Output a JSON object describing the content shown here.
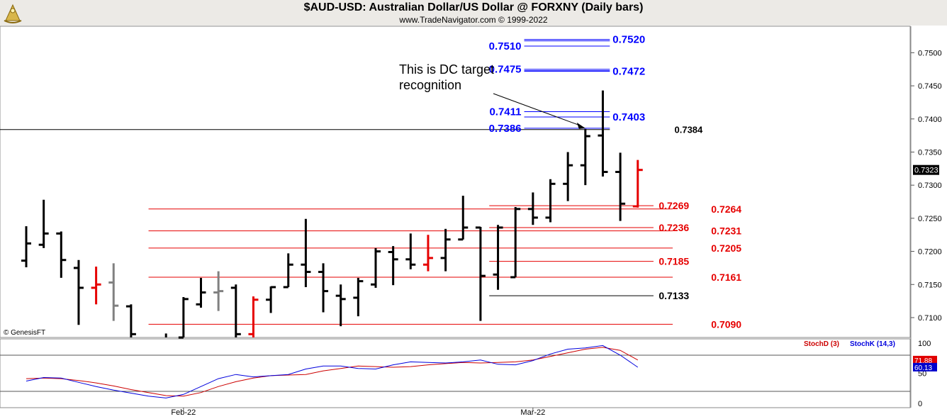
{
  "header": {
    "title": "$AUD-USD:  Australian Dollar/US Dollar @ FORXNY  (Daily bars)",
    "subtitle": "www.TradeNavigator.com © 1999-2022",
    "logo_icon": "gold-sextant-logo-icon"
  },
  "watermark": "© GenesisFT",
  "colors": {
    "black": "#000000",
    "red": "#e60000",
    "gray": "#808080",
    "blue": "#0000ff",
    "stoch_d": "#cc0000",
    "stoch_k": "#0000dd"
  },
  "chart_data": {
    "type": "ohlc-bar",
    "x_ticks": [
      {
        "label": "Feb-22",
        "index": 9
      },
      {
        "label": "Mar-22",
        "index": 29
      }
    ],
    "y_axis": {
      "ylim": [
        0.707,
        0.754
      ],
      "ticks": [
        "0.7100",
        "0.7150",
        "0.7200",
        "0.7250",
        "0.7300",
        "0.7350",
        "0.7400",
        "0.7450",
        "0.7500"
      ]
    },
    "last_price": "0.7323",
    "bars": [
      {
        "o": 0.7186,
        "h": 0.7238,
        "l": 0.7176,
        "c": 0.7212,
        "color": "black"
      },
      {
        "o": 0.721,
        "h": 0.7278,
        "l": 0.7205,
        "c": 0.7227,
        "color": "black"
      },
      {
        "o": 0.7227,
        "h": 0.723,
        "l": 0.716,
        "c": 0.7187,
        "color": "black"
      },
      {
        "o": 0.7175,
        "h": 0.7187,
        "l": 0.7089,
        "c": 0.7145,
        "color": "black"
      },
      {
        "o": 0.7145,
        "h": 0.7177,
        "l": 0.712,
        "c": 0.715,
        "color": "red"
      },
      {
        "o": 0.7153,
        "h": 0.7182,
        "l": 0.7095,
        "c": 0.7118,
        "color": "gray"
      },
      {
        "o": 0.7117,
        "h": 0.712,
        "l": 0.706,
        "c": 0.7075,
        "color": "black"
      },
      {
        "o": 0.7055,
        "h": 0.707,
        "l": 0.704,
        "c": 0.706,
        "color": "black"
      },
      {
        "o": 0.7068,
        "h": 0.7076,
        "l": 0.705,
        "c": 0.706,
        "color": "black"
      },
      {
        "o": 0.707,
        "h": 0.7131,
        "l": 0.7065,
        "c": 0.7128,
        "color": "black"
      },
      {
        "o": 0.712,
        "h": 0.716,
        "l": 0.7115,
        "c": 0.7138,
        "color": "black"
      },
      {
        "o": 0.7138,
        "h": 0.717,
        "l": 0.711,
        "c": 0.714,
        "color": "gray"
      },
      {
        "o": 0.7145,
        "h": 0.715,
        "l": 0.706,
        "c": 0.7075,
        "color": "black"
      },
      {
        "o": 0.7075,
        "h": 0.7132,
        "l": 0.7062,
        "c": 0.7127,
        "color": "red"
      },
      {
        "o": 0.7127,
        "h": 0.7147,
        "l": 0.7107,
        "c": 0.7146,
        "color": "black"
      },
      {
        "o": 0.7146,
        "h": 0.7197,
        "l": 0.7146,
        "c": 0.718,
        "color": "black"
      },
      {
        "o": 0.718,
        "h": 0.7249,
        "l": 0.7146,
        "c": 0.7169,
        "color": "black"
      },
      {
        "o": 0.7169,
        "h": 0.7182,
        "l": 0.7108,
        "c": 0.714,
        "color": "black"
      },
      {
        "o": 0.7133,
        "h": 0.715,
        "l": 0.7087,
        "c": 0.7128,
        "color": "black"
      },
      {
        "o": 0.713,
        "h": 0.716,
        "l": 0.7102,
        "c": 0.7155,
        "color": "black"
      },
      {
        "o": 0.715,
        "h": 0.7205,
        "l": 0.7145,
        "c": 0.72,
        "color": "black"
      },
      {
        "o": 0.7199,
        "h": 0.7208,
        "l": 0.7149,
        "c": 0.7188,
        "color": "black"
      },
      {
        "o": 0.7188,
        "h": 0.7227,
        "l": 0.7173,
        "c": 0.718,
        "color": "black"
      },
      {
        "o": 0.718,
        "h": 0.7225,
        "l": 0.717,
        "c": 0.719,
        "color": "red"
      },
      {
        "o": 0.719,
        "h": 0.7234,
        "l": 0.717,
        "c": 0.7218,
        "color": "black"
      },
      {
        "o": 0.7218,
        "h": 0.7284,
        "l": 0.7218,
        "c": 0.7236,
        "color": "black"
      },
      {
        "o": 0.7236,
        "h": 0.7237,
        "l": 0.7095,
        "c": 0.7163,
        "color": "black"
      },
      {
        "o": 0.7165,
        "h": 0.724,
        "l": 0.7142,
        "c": 0.7236,
        "color": "black"
      },
      {
        "o": 0.7161,
        "h": 0.7267,
        "l": 0.7161,
        "c": 0.7264,
        "color": "black"
      },
      {
        "o": 0.7264,
        "h": 0.7289,
        "l": 0.724,
        "c": 0.7251,
        "color": "black"
      },
      {
        "o": 0.7251,
        "h": 0.7309,
        "l": 0.7244,
        "c": 0.7302,
        "color": "black"
      },
      {
        "o": 0.7302,
        "h": 0.735,
        "l": 0.7276,
        "c": 0.733,
        "color": "black"
      },
      {
        "o": 0.733,
        "h": 0.7385,
        "l": 0.73,
        "c": 0.7374,
        "color": "black"
      },
      {
        "o": 0.7375,
        "h": 0.7443,
        "l": 0.7313,
        "c": 0.732,
        "color": "black"
      },
      {
        "o": 0.732,
        "h": 0.7349,
        "l": 0.7246,
        "c": 0.7272,
        "color": "black"
      },
      {
        "o": 0.7268,
        "h": 0.7338,
        "l": 0.7266,
        "c": 0.7323,
        "color": "red"
      }
    ],
    "levels": [
      {
        "price": 0.752,
        "label": "0.7520",
        "color": "blue",
        "x1": 28.5,
        "x2": 33.4,
        "side": "right",
        "double": true,
        "label_size": 15
      },
      {
        "price": 0.751,
        "label": "0.7510",
        "color": "blue",
        "x1": 28.5,
        "x2": 33.4,
        "side": "left",
        "label_size": 15
      },
      {
        "price": 0.7475,
        "label": "0.7475",
        "color": "blue",
        "x1": 28.5,
        "x2": 33.4,
        "side": "left",
        "double": true,
        "label_size": 15
      },
      {
        "price": 0.7472,
        "label": "0.7472",
        "color": "blue",
        "x1": 28.5,
        "x2": 33.4,
        "side": "right",
        "label_size": 15
      },
      {
        "price": 0.7411,
        "label": "0.7411",
        "color": "blue",
        "x1": 28.5,
        "x2": 33.4,
        "side": "left",
        "label_size": 15
      },
      {
        "price": 0.7403,
        "label": "0.7403",
        "color": "blue",
        "x1": 28.5,
        "x2": 33.4,
        "side": "right",
        "label_size": 15
      },
      {
        "price": 0.7386,
        "label": "0.7386",
        "color": "blue",
        "x1": 28.5,
        "x2": 33.4,
        "side": "left",
        "label_size": 15
      },
      {
        "price": 0.7384,
        "label": "0.7384",
        "color": "black",
        "x1": -10,
        "x2": 33.4,
        "side": "right-mid",
        "label_size": 13
      },
      {
        "price": 0.7269,
        "label": "0.7269",
        "color": "red",
        "x1": 26.5,
        "x2": 35.9,
        "side": "left-late",
        "label_size": 14
      },
      {
        "price": 0.7264,
        "label": "0.7264",
        "color": "red",
        "x1": 7,
        "x2": 37,
        "side": "right-late",
        "label_size": 14
      },
      {
        "price": 0.7236,
        "label": "0.7236",
        "color": "red",
        "x1": 26.5,
        "x2": 35.9,
        "side": "left-late",
        "label_size": 14
      },
      {
        "price": 0.7231,
        "label": "0.7231",
        "color": "red",
        "x1": 7,
        "x2": 37,
        "side": "right-late",
        "label_size": 14
      },
      {
        "price": 0.7205,
        "label": "0.7205",
        "color": "red",
        "x1": 7,
        "x2": 37,
        "side": "right-late",
        "label_size": 14
      },
      {
        "price": 0.7185,
        "label": "0.7185",
        "color": "red",
        "x1": 26.5,
        "x2": 35.9,
        "side": "left-late",
        "label_size": 14
      },
      {
        "price": 0.7161,
        "label": "0.7161",
        "color": "red",
        "x1": 7,
        "x2": 37,
        "side": "right-late",
        "label_size": 14
      },
      {
        "price": 0.7133,
        "label": "0.7133",
        "color": "black",
        "x1": 26.5,
        "x2": 35.9,
        "side": "left-late",
        "label_size": 14
      },
      {
        "price": 0.709,
        "label": "0.7090",
        "color": "red",
        "x1": 7,
        "x2": 37,
        "side": "right-late",
        "label_size": 14
      }
    ],
    "annotation": {
      "lines": [
        "This is DC target",
        "recognition"
      ],
      "arrow_to": {
        "index": 32,
        "price": 0.7386
      }
    },
    "stochastic": {
      "legend": [
        "StochD (3)",
        "StochK (14,3)"
      ],
      "ylim": [
        0,
        100
      ],
      "ticks": [
        "0",
        "50",
        "100"
      ],
      "guides": [
        20,
        80
      ],
      "last_d": "71.88",
      "last_k": "60.13",
      "d": [
        41,
        42,
        41,
        38,
        34,
        29,
        23,
        18,
        13,
        12,
        18,
        28,
        36,
        42,
        46,
        47,
        48,
        54,
        58,
        62,
        61,
        60,
        61,
        64,
        66,
        68,
        67,
        68,
        69,
        72,
        78,
        84,
        90,
        93,
        88,
        72
      ],
      "k": [
        37,
        43,
        42,
        35,
        28,
        22,
        17,
        12,
        9,
        15,
        28,
        41,
        48,
        44,
        46,
        48,
        57,
        62,
        62,
        58,
        57,
        64,
        69,
        68,
        67,
        69,
        72,
        65,
        64,
        71,
        82,
        90,
        92,
        96,
        80,
        60
      ]
    }
  }
}
